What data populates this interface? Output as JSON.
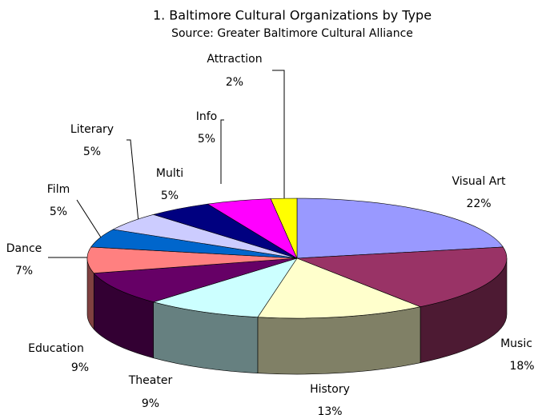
{
  "chart_data": {
    "type": "pie3d",
    "title": "1. Baltimore Cultural Organizations by Type",
    "subtitle": "Source: Greater Baltimore Cultural Alliance",
    "categories": [
      "Visual Art",
      "Music",
      "History",
      "Theater",
      "Education",
      "Dance",
      "Film",
      "Literary",
      "Multi",
      "Info",
      "Attraction"
    ],
    "values": [
      22,
      18,
      13,
      9,
      9,
      7,
      5,
      5,
      5,
      5,
      2
    ],
    "value_labels": [
      "22%",
      "18%",
      "13%",
      "9%",
      "9%",
      "7%",
      "5%",
      "5%",
      "5%",
      "5%",
      "2%"
    ],
    "colors": [
      "#9999ff",
      "#993366",
      "#ffffcc",
      "#ccffff",
      "#660066",
      "#ff8080",
      "#0066cc",
      "#ccccff",
      "#000080",
      "#ff00ff",
      "#ffff00"
    ]
  }
}
